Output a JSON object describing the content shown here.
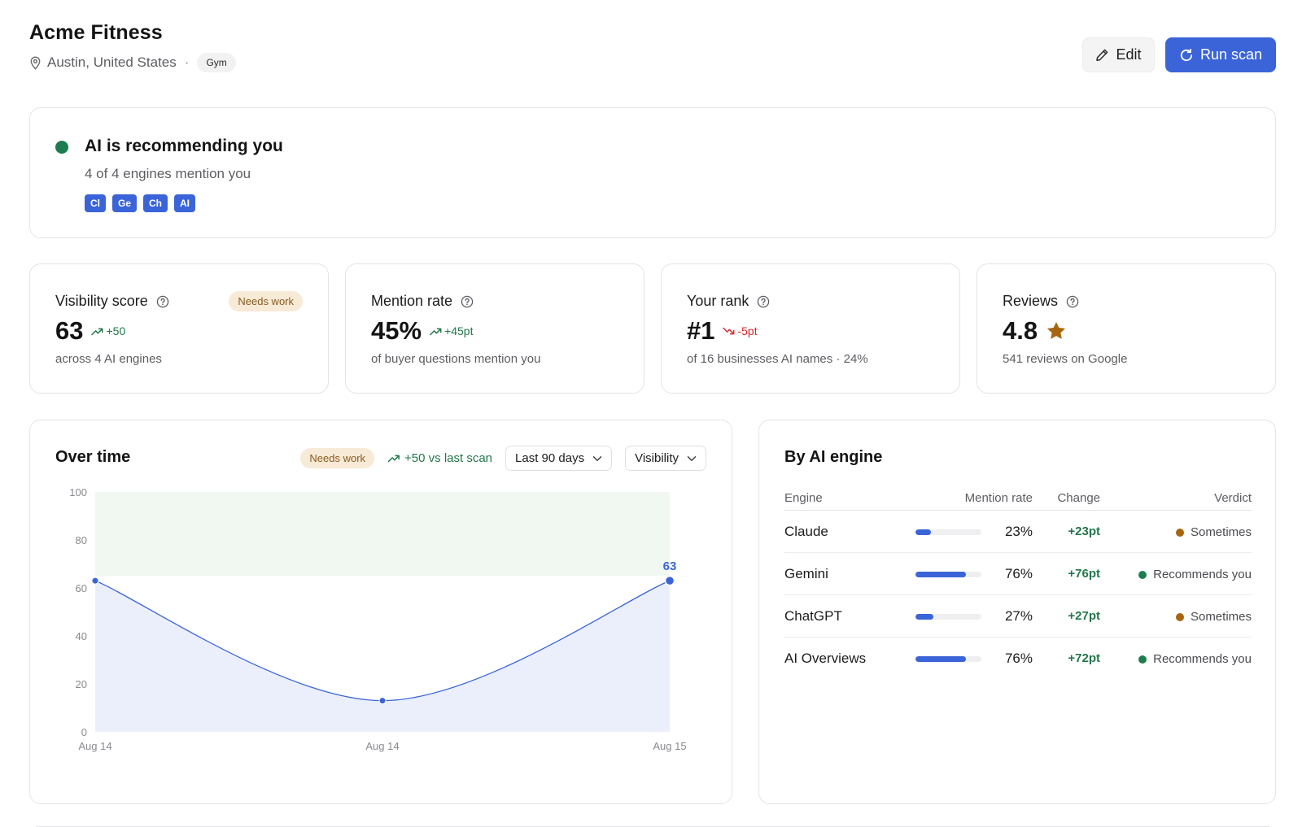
{
  "header": {
    "title": "Acme Fitness",
    "location": "Austin, United States",
    "separator": "·",
    "category": "Gym"
  },
  "actions": {
    "edit_label": "Edit",
    "run_label": "Run scan",
    "accent": "#3a64d8"
  },
  "status": {
    "title": "AI is recommending you",
    "subtitle": "4 of 4 engines mention you",
    "color": "#1e7d4f",
    "engine_chips": [
      "Cl",
      "Ge",
      "Ch",
      "AI"
    ]
  },
  "stats": [
    {
      "label": "Visibility score",
      "value": "63",
      "delta": "+50",
      "direction": "up",
      "description": "across 4 AI engines",
      "badge": "Needs work"
    },
    {
      "label": "Mention rate",
      "value": "45%",
      "delta": "+45pt",
      "direction": "up",
      "description": "of buyer questions mention you"
    },
    {
      "label": "Your rank",
      "value": "#1",
      "delta": "-5pt",
      "direction": "down",
      "description": "of 16 businesses AI names · 24%"
    },
    {
      "label": "Reviews",
      "value": "4.8",
      "description": "541 reviews on Google",
      "icon": "star-icon"
    }
  ],
  "over_time": {
    "title": "Over time",
    "badge": "Needs work",
    "trend": "+50 vs last scan",
    "range_select": "Last 90 days",
    "metric_select": "Visibility"
  },
  "chart_data": {
    "type": "line",
    "title": "",
    "xlabel": "",
    "ylabel": "",
    "x": [
      "Aug 14",
      "Aug 14",
      "Aug 15"
    ],
    "values": [
      63,
      13,
      63
    ],
    "ylim": [
      0,
      100
    ],
    "yticks": [
      0,
      20,
      40,
      60,
      80,
      100
    ],
    "target_band": [
      65,
      100
    ],
    "last_value_label": "63",
    "grid": false,
    "legend": "none",
    "colors": {
      "line": "#3a64d8",
      "fill": "#eaeffb",
      "band": "#f1f8f2"
    }
  },
  "engines": {
    "title": "By AI engine",
    "columns": {
      "engine": "Engine",
      "rate": "Mention rate",
      "change": "Change",
      "verdict": "Verdict"
    },
    "rows": [
      {
        "name": "Claude",
        "rate": "23%",
        "rate_value": 0.23,
        "change": "+23pt",
        "verdict": "Sometimes",
        "verdict_color": "#a8650f"
      },
      {
        "name": "Gemini",
        "rate": "76%",
        "rate_value": 0.76,
        "change": "+76pt",
        "verdict": "Recommends you",
        "verdict_color": "#1e7d4f"
      },
      {
        "name": "ChatGPT",
        "rate": "27%",
        "rate_value": 0.27,
        "change": "+27pt",
        "verdict": "Sometimes",
        "verdict_color": "#a8650f"
      },
      {
        "name": "AI Overviews",
        "rate": "76%",
        "rate_value": 0.76,
        "change": "+72pt",
        "verdict": "Recommends you",
        "verdict_color": "#1e7d4f"
      }
    ]
  }
}
